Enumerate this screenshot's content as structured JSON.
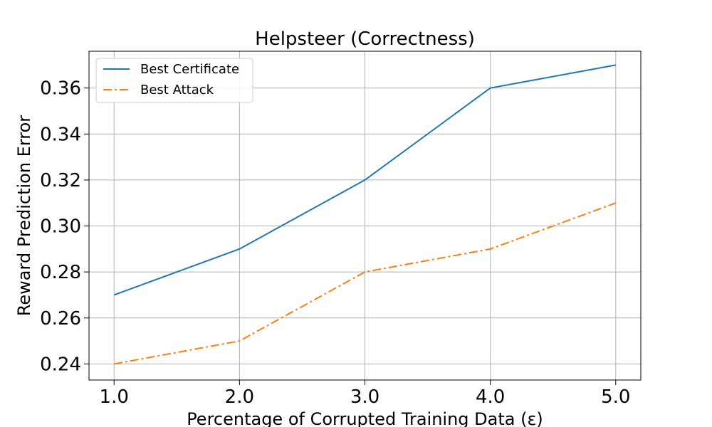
{
  "chart_data": {
    "type": "line",
    "title": "Helpsteer (Correctness)",
    "xlabel": "Percentage of Corrupted Training Data (ε)",
    "ylabel": "Reward Prediction Error",
    "x": [
      1.0,
      2.0,
      3.0,
      4.0,
      5.0
    ],
    "x_tick_labels": [
      "1.0",
      "2.0",
      "3.0",
      "4.0",
      "5.0"
    ],
    "y_ticks": [
      0.24,
      0.26,
      0.28,
      0.3,
      0.32,
      0.34,
      0.36
    ],
    "y_tick_labels": [
      "0.24",
      "0.26",
      "0.28",
      "0.30",
      "0.32",
      "0.34",
      "0.36"
    ],
    "xlim": [
      0.8,
      5.2
    ],
    "ylim": [
      0.233,
      0.376
    ],
    "grid": true,
    "legend_position": "top-left",
    "series": [
      {
        "name": "Best Certificate",
        "values": [
          0.27,
          0.29,
          0.32,
          0.36,
          0.37
        ],
        "color": "#1f77b4",
        "style": "solid"
      },
      {
        "name": "Best Attack",
        "values": [
          0.24,
          0.25,
          0.28,
          0.29,
          0.31
        ],
        "color": "#ff7f0e",
        "style": "dashdot"
      }
    ]
  }
}
